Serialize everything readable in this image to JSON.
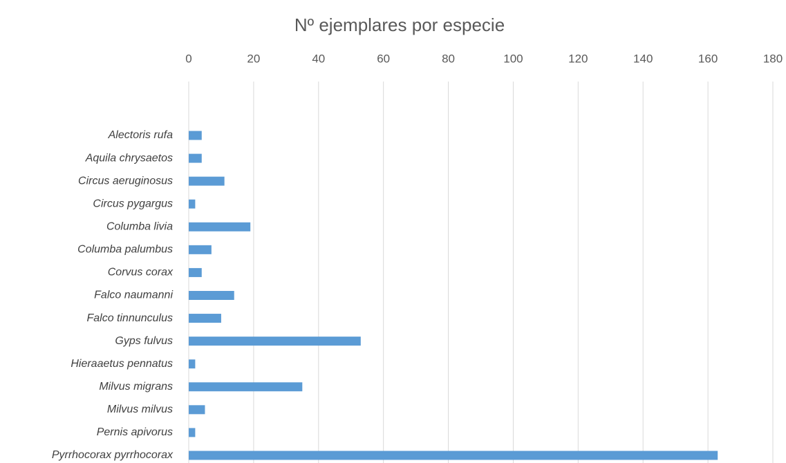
{
  "chart_data": {
    "type": "bar",
    "orientation": "horizontal",
    "title": "Nº ejemplares por especie",
    "categories": [
      "Alectoris rufa",
      "Aquila chrysaetos",
      "Circus aeruginosus",
      "Circus pygargus",
      "Columba livia",
      "Columba palumbus",
      "Corvus corax",
      "Falco naumanni",
      "Falco tinnunculus",
      "Gyps fulvus",
      "Hieraaetus pennatus",
      "Milvus migrans",
      "Milvus milvus",
      "Pernis apivorus",
      "Pyrrhocorax pyrrhocorax"
    ],
    "values": [
      4,
      4,
      11,
      2,
      19,
      7,
      4,
      14,
      10,
      53,
      2,
      35,
      5,
      2,
      163
    ],
    "color": "#5b9bd5",
    "xlim": [
      0,
      180
    ],
    "xticks": [
      0,
      20,
      40,
      60,
      80,
      100,
      120,
      140,
      160,
      180
    ],
    "grid": true
  }
}
